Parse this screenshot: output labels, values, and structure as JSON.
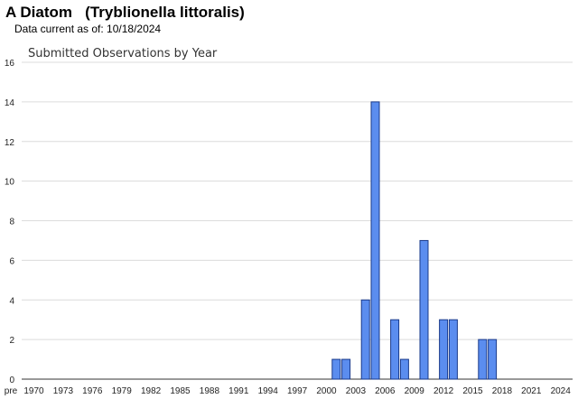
{
  "page": {
    "title": "A Diatom   (Tryblionella littoralis)",
    "data_date": "Data current as of: 10/18/2024"
  },
  "chart_data": {
    "type": "bar",
    "title": "Submitted Observations by Year",
    "xlabel": "",
    "ylabel": "",
    "ylim": [
      0,
      16
    ],
    "yticks": [
      0,
      2,
      4,
      6,
      8,
      10,
      12,
      14,
      16
    ],
    "grid": true,
    "legend": "none",
    "bar_color": "#5b8def",
    "bar_edge_color": "#1a3a8a",
    "categories": [
      "pre",
      "1970",
      "1971",
      "1972",
      "1973",
      "1974",
      "1975",
      "1976",
      "1977",
      "1978",
      "1979",
      "1980",
      "1981",
      "1982",
      "1983",
      "1984",
      "1985",
      "1986",
      "1987",
      "1988",
      "1989",
      "1990",
      "1991",
      "1992",
      "1993",
      "1994",
      "1995",
      "1996",
      "1997",
      "1998",
      "1999",
      "2000",
      "2001",
      "2002",
      "2003",
      "2004",
      "2005",
      "2006",
      "2007",
      "2008",
      "2009",
      "2010",
      "2011",
      "2012",
      "2013",
      "2014",
      "2015",
      "2016",
      "2017",
      "2018",
      "2019",
      "2020",
      "2021",
      "2022",
      "2023",
      "2024"
    ],
    "values": [
      0,
      0,
      0,
      0,
      0,
      0,
      0,
      0,
      0,
      0,
      0,
      0,
      0,
      0,
      0,
      0,
      0,
      0,
      0,
      0,
      0,
      0,
      0,
      0,
      0,
      0,
      0,
      0,
      0,
      0,
      0,
      0,
      1,
      1,
      0,
      4,
      14,
      0,
      3,
      1,
      0,
      7,
      0,
      3,
      3,
      0,
      0,
      2,
      2,
      0,
      0,
      0,
      0,
      0,
      0,
      0
    ],
    "x_tick_labels": [
      "pre",
      "1970",
      "1973",
      "1976",
      "1979",
      "1982",
      "1985",
      "1988",
      "1991",
      "1994",
      "1997",
      "2000",
      "2003",
      "2006",
      "2009",
      "2012",
      "2015",
      "2018",
      "2021",
      "2024"
    ]
  }
}
